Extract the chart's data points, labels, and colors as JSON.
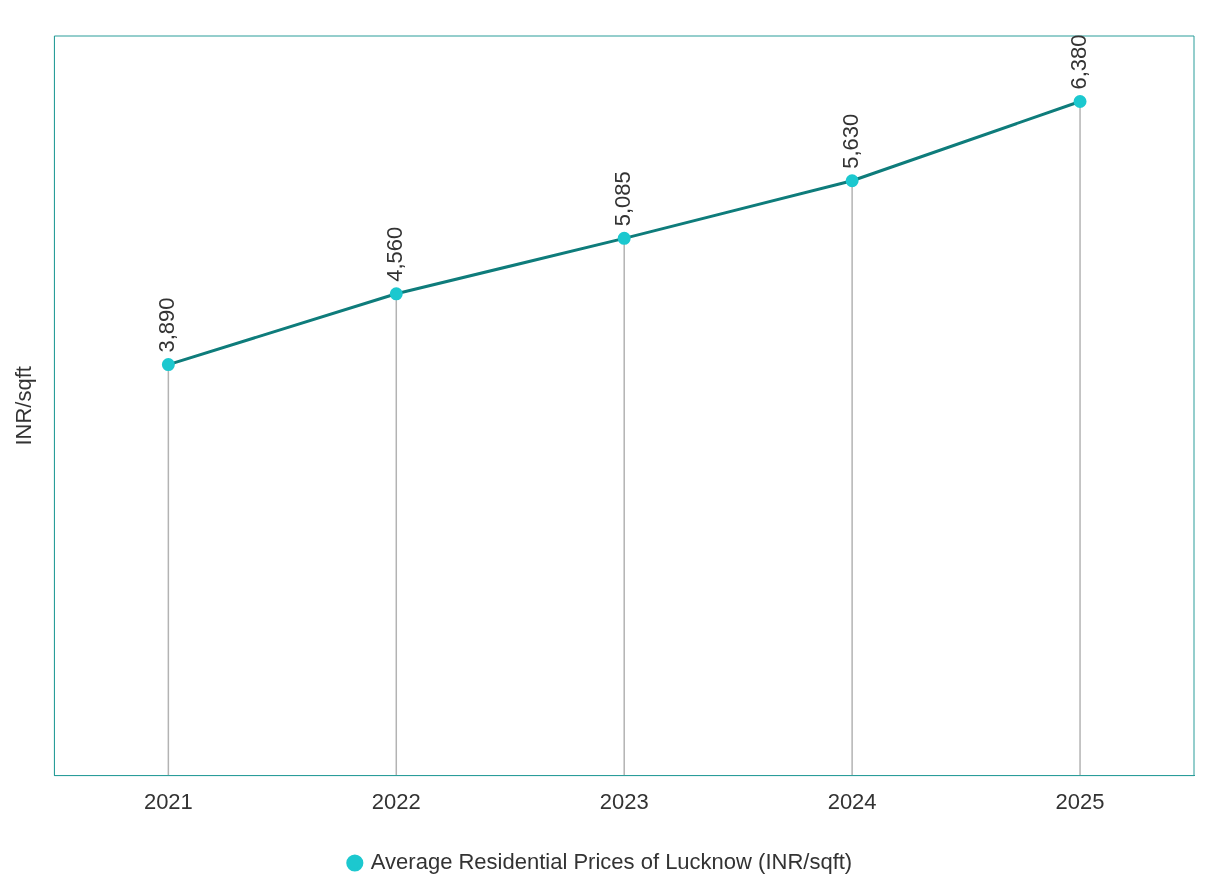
{
  "chart_data": {
    "type": "line",
    "ylabel": "INR/sqft",
    "categories": [
      "2021",
      "2022",
      "2023",
      "2024",
      "2025"
    ],
    "series": [
      {
        "name": "Average Residential Prices of Lucknow (INR/sqft)",
        "color": "#0e7c7b",
        "colors": [
          "#1cc8cf",
          "#1cc8cf",
          "#1cc8cf",
          "#1cc8cf",
          "#1cc8cf"
        ],
        "values": [
          3890,
          4560,
          5085,
          5630,
          6380
        ],
        "value_labels": [
          "3,890",
          "4,560",
          "5,085",
          "5,630",
          "6,380"
        ]
      }
    ],
    "tick_labels": "x",
    "legend": "bottom",
    "marker": "circle",
    "line_style": "solid",
    "grid": "x"
  }
}
